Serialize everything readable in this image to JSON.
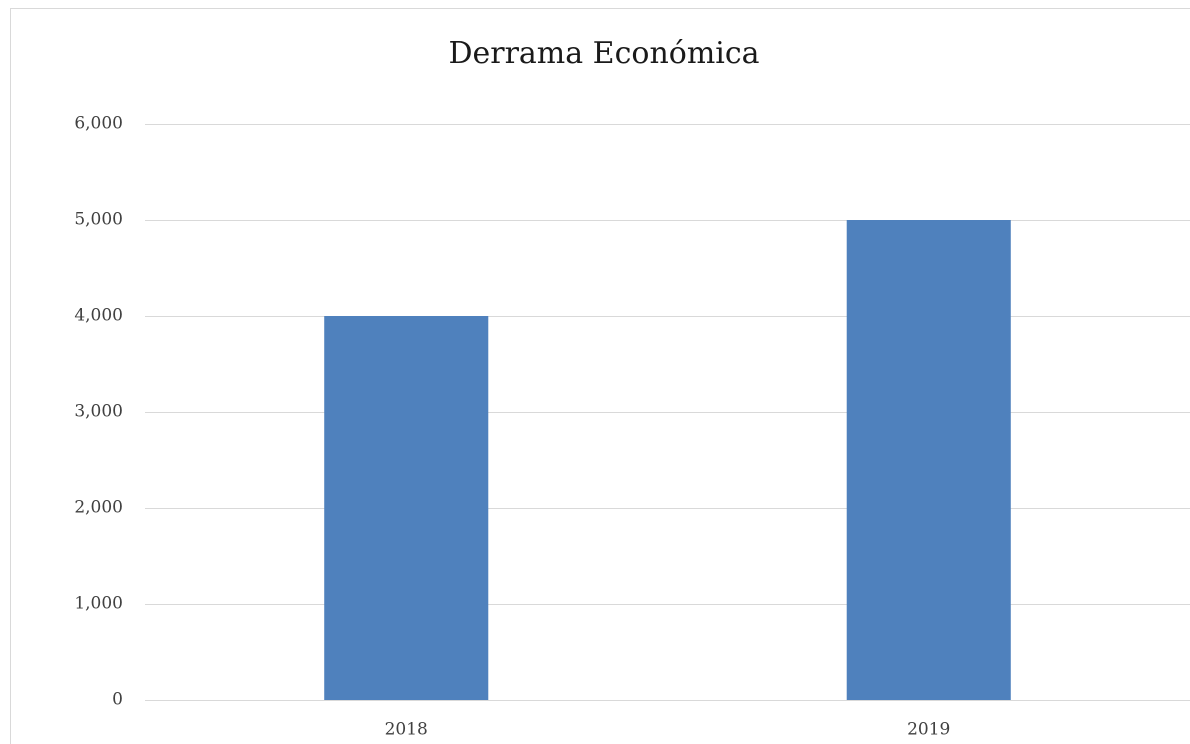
{
  "chart_data": {
    "type": "bar",
    "title": "Derrama Económica",
    "categories": [
      "2018",
      "2019"
    ],
    "values": [
      4000,
      5000
    ],
    "color": "#4f81bd",
    "ylim": [
      0,
      6000
    ],
    "yticks": [
      0,
      {
        "value": 1000,
        "label": "1,000"
      },
      {
        "value": 2000,
        "label": "2,000"
      },
      {
        "value": 3000,
        "label": "3,000"
      },
      {
        "value": 4000,
        "label": "4,000"
      },
      {
        "value": 5000,
        "label": "5,000"
      },
      {
        "value": 6000,
        "label": "6,000"
      }
    ],
    "grid": true
  }
}
